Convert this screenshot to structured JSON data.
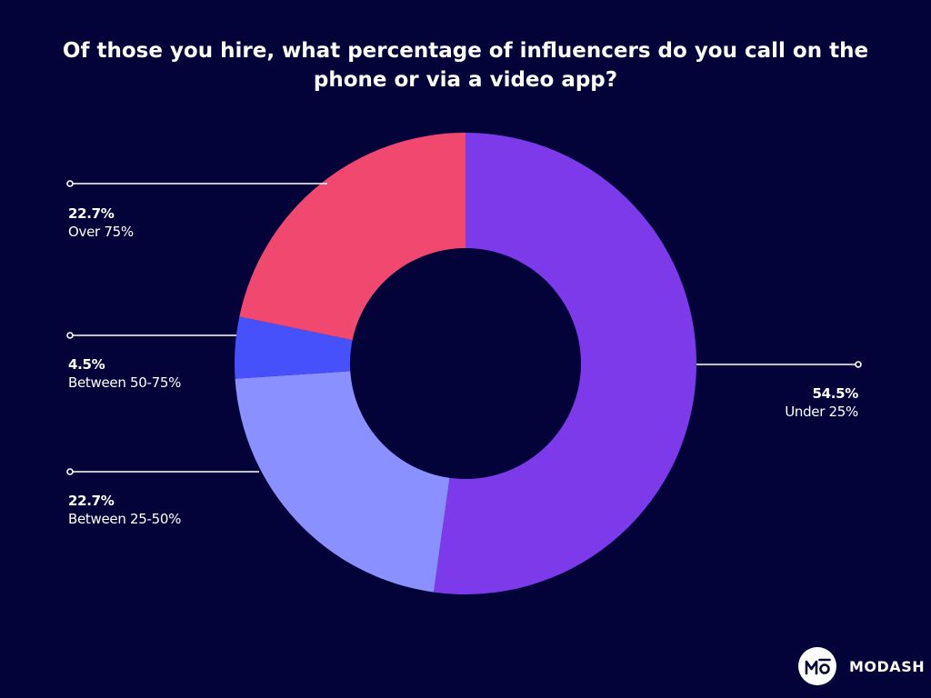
{
  "chart_data": {
    "type": "pie",
    "title": "Of those you hire, what percentage of influencers do you call on the phone or via a video app?",
    "slices": [
      {
        "label": "Under 25%",
        "value": 54.5,
        "display": "54.5%",
        "color": "#7d3aea"
      },
      {
        "label": "Between 25-50%",
        "value": 22.7,
        "display": "22.7%",
        "color": "#8a90ff"
      },
      {
        "label": "Between 50-75%",
        "value": 4.5,
        "display": "4.5%",
        "color": "#4650fb"
      },
      {
        "label": "Over 75%",
        "value": 22.7,
        "display": "22.7%",
        "color": "#f0486f"
      }
    ]
  },
  "colors": {
    "background": "#03033a",
    "text": "#ffffff",
    "leader": "#ffffff"
  },
  "brand": {
    "name": "MODASH",
    "logo_icon": "modash-logo-icon"
  }
}
